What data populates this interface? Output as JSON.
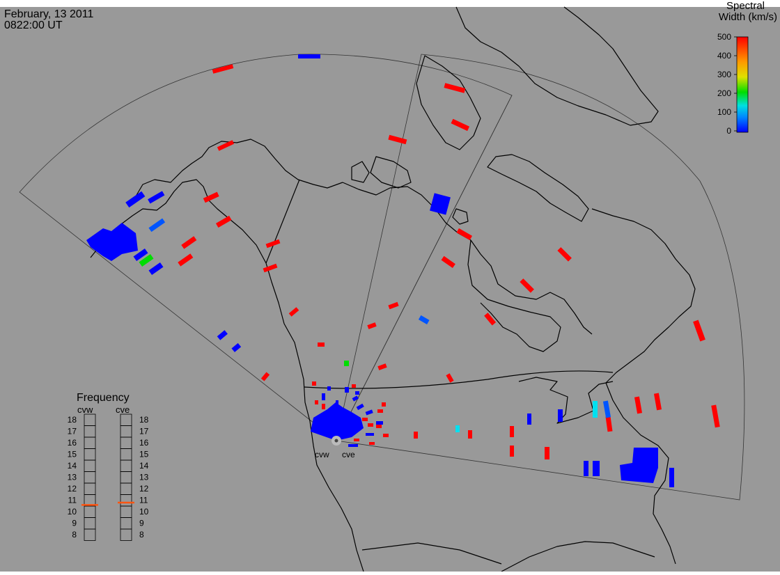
{
  "header": {
    "date": "February, 13 2011",
    "time": "0822:00 UT"
  },
  "colorbar": {
    "title_line1": "Spectral",
    "title_line2": "Width (km/s)",
    "ticks": [
      "500",
      "400",
      "300",
      "200",
      "100",
      "0"
    ],
    "colors": [
      "#0000ff",
      "#0088ff",
      "#00e0e0",
      "#00dd00",
      "#e0e000",
      "#ff9900",
      "#ff0000"
    ]
  },
  "radars": {
    "west_code": "cvw",
    "east_code": "cve"
  },
  "frequency": {
    "title": "Frequency",
    "col_west": "cvw",
    "col_east": "cve",
    "scale": [
      "18",
      "17",
      "16",
      "15",
      "14",
      "13",
      "12",
      "11",
      "10",
      "9",
      "8"
    ],
    "west_mhz": 10.6,
    "east_mhz": 10.8,
    "marker_color": "#ff5511"
  },
  "scatter_colors": {
    "red": "#ff0000",
    "blue": "#0000ff",
    "mid_blue": "#0055ff",
    "cyan": "#00e0f0",
    "green": "#00dd00"
  }
}
